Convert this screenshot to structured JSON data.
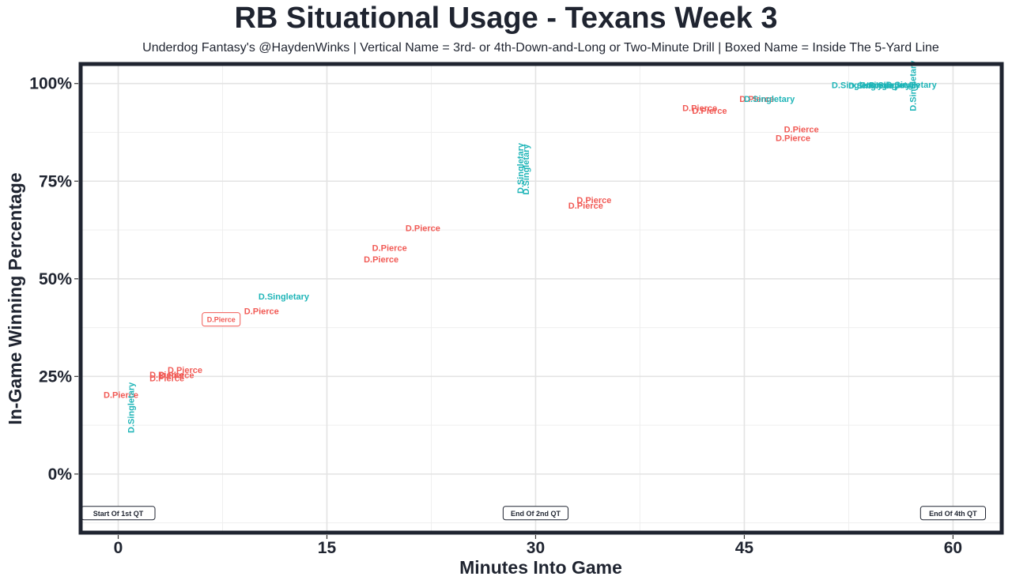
{
  "colors": {
    "pierce": "#f15a55",
    "singletary": "#1fb5b8",
    "frame": "#1f2430",
    "grid": "#e3e3e3"
  },
  "chart_data": {
    "type": "scatter",
    "title": "RB Situational Usage - Texans Week 3",
    "subtitle": "Underdog Fantasy's @HaydenWinks | Vertical Name = 3rd- or 4th-Down-and-Long or Two-Minute Drill | Boxed Name = Inside The 5-Yard Line",
    "xlabel": "Minutes Into Game",
    "ylabel": "In-Game Winning Percentage",
    "xlim": [
      -2.7,
      63.5
    ],
    "ylim": [
      -15,
      105
    ],
    "x_ticks": [
      {
        "value": 0,
        "label": "0"
      },
      {
        "value": 15,
        "label": "15"
      },
      {
        "value": 30,
        "label": "30"
      },
      {
        "value": 45,
        "label": "45"
      },
      {
        "value": 60,
        "label": "60"
      }
    ],
    "y_ticks": [
      {
        "value": 0,
        "label": "0%"
      },
      {
        "value": 25,
        "label": "25%"
      },
      {
        "value": 50,
        "label": "50%"
      },
      {
        "value": 75,
        "label": "75%"
      },
      {
        "value": 100,
        "label": "100%"
      }
    ],
    "grid": true,
    "series": [
      {
        "name": "D.Pierce",
        "points": [
          {
            "x": 0.2,
            "y": 20.3,
            "label": "D.Pierce"
          },
          {
            "x": 3.5,
            "y": 25.5,
            "label": "D.Pierce"
          },
          {
            "x": 4.2,
            "y": 25.4,
            "label": "D.Pierce"
          },
          {
            "x": 4.8,
            "y": 26.7,
            "label": "D.Pierce"
          },
          {
            "x": 3.5,
            "y": 24.6,
            "label": "D.Pierce"
          },
          {
            "x": 7.4,
            "y": 39.6,
            "label": "D.Pierce",
            "boxed": true
          },
          {
            "x": 10.3,
            "y": 41.8,
            "label": "D.Pierce"
          },
          {
            "x": 18.9,
            "y": 55.0,
            "label": "D.Pierce"
          },
          {
            "x": 19.5,
            "y": 58.0,
            "label": "D.Pierce"
          },
          {
            "x": 21.9,
            "y": 63.0,
            "label": "D.Pierce"
          },
          {
            "x": 34.2,
            "y": 70.2,
            "label": "D.Pierce"
          },
          {
            "x": 33.6,
            "y": 68.8,
            "label": "D.Pierce"
          },
          {
            "x": 41.8,
            "y": 93.8,
            "label": "D.Pierce"
          },
          {
            "x": 42.5,
            "y": 93.1,
            "label": "D.Pierce"
          },
          {
            "x": 45.9,
            "y": 96.1,
            "label": "D.Pierce"
          },
          {
            "x": 49.1,
            "y": 88.3,
            "label": "D.Pierce"
          },
          {
            "x": 48.5,
            "y": 86.1,
            "label": "D.Pierce"
          }
        ]
      },
      {
        "name": "D.Singletary",
        "points": [
          {
            "x": 0.9,
            "y": 17,
            "label": "D.Singletary",
            "vertical": true
          },
          {
            "x": 11.9,
            "y": 45.5,
            "label": "D.Singletary"
          },
          {
            "x": 28.9,
            "y": 78.3,
            "label": "D.Singletary",
            "vertical": true
          },
          {
            "x": 29.3,
            "y": 78.0,
            "label": "D.Singletary",
            "vertical": true
          },
          {
            "x": 46.8,
            "y": 96.1,
            "label": "D.Singletary"
          },
          {
            "x": 53.1,
            "y": 99.6,
            "label": "D.Singletary"
          },
          {
            "x": 54.3,
            "y": 99.5,
            "label": "D.Singletary"
          },
          {
            "x": 55.1,
            "y": 99.6,
            "label": "D.Singletary"
          },
          {
            "x": 55.8,
            "y": 99.6,
            "label": "D.Singletary"
          },
          {
            "x": 57.0,
            "y": 99.7,
            "label": "D.Singletary"
          },
          {
            "x": 57.1,
            "y": 99.4,
            "label": "D.Singletary",
            "vertical": true
          }
        ]
      }
    ],
    "annotations": [
      {
        "x": 0,
        "y": -10,
        "label": "Start Of 1st QT"
      },
      {
        "x": 30,
        "y": -10,
        "label": "End Of 2nd QT"
      },
      {
        "x": 60,
        "y": -10,
        "label": "End Of 4th QT"
      }
    ]
  }
}
